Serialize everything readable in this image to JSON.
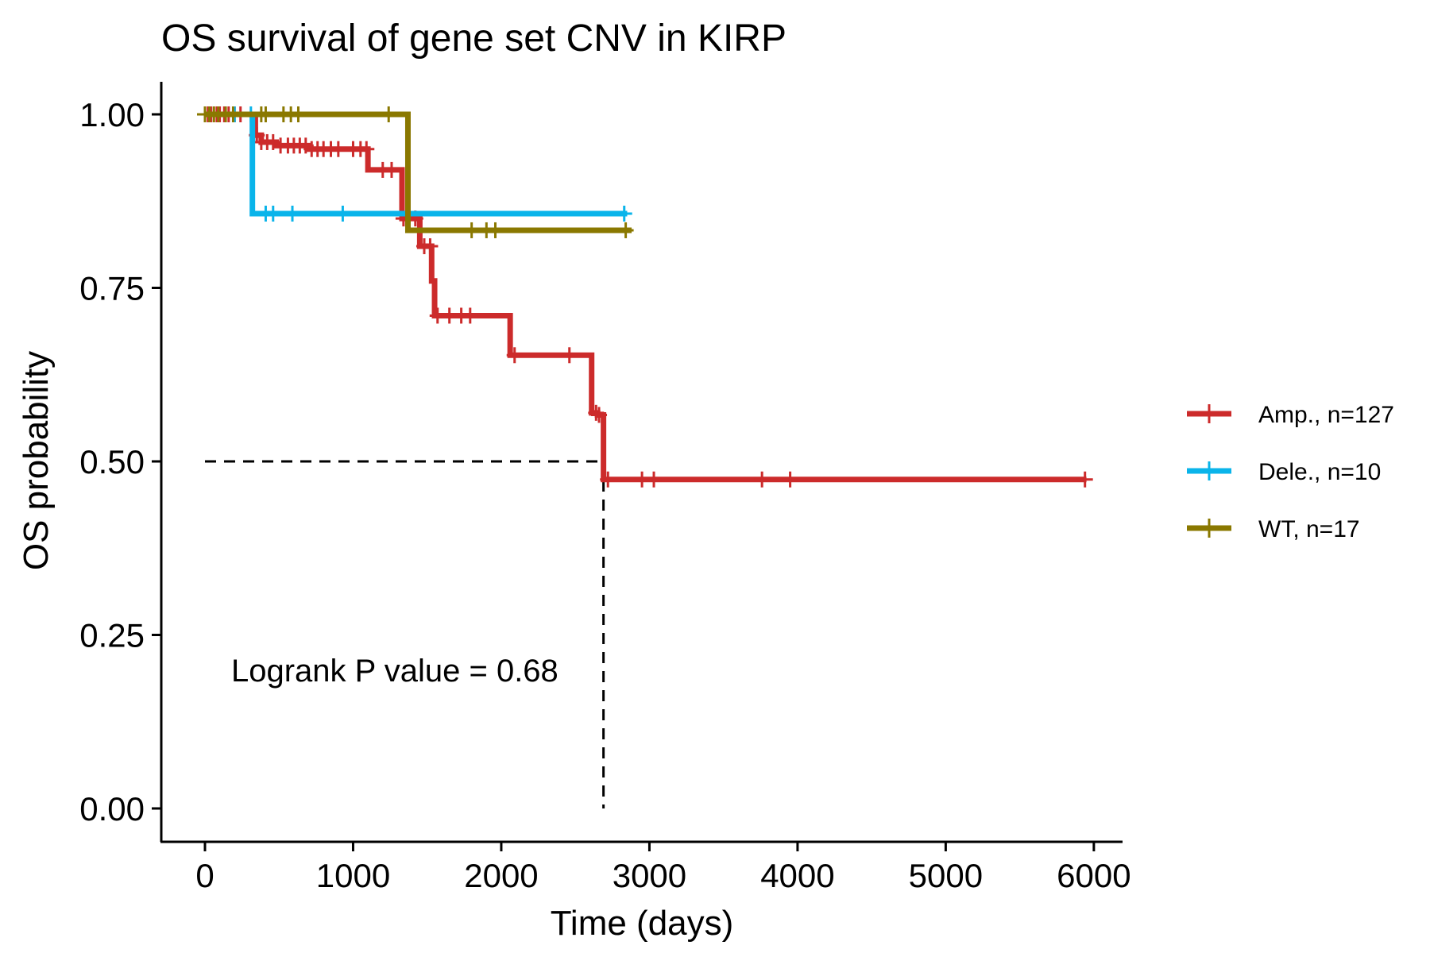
{
  "chart_data": {
    "type": "line",
    "subtype": "kaplan-meier step",
    "title": "OS survival of gene set CNV in KIRP",
    "xlabel": "Time (days)",
    "ylabel": "OS probability",
    "xlim": [
      -300,
      6200
    ],
    "ylim": [
      -0.05,
      1.05
    ],
    "x_ticks": [
      0,
      1000,
      2000,
      3000,
      4000,
      5000,
      6000
    ],
    "x_tick_labels": [
      "0",
      "1000",
      "2000",
      "3000",
      "4000",
      "5000",
      "6000"
    ],
    "y_ticks": [
      0,
      0.25,
      0.5,
      0.75,
      1
    ],
    "y_tick_labels": [
      "0.00",
      "0.25",
      "0.50",
      "0.75",
      "1.00"
    ],
    "grid": false,
    "legend_position": "right",
    "annotation": "Logrank P value = 0.68",
    "median_line": {
      "y": 0.5,
      "x": 2690
    },
    "series": [
      {
        "name": "Amp., n=127",
        "color": "#CC2B2B",
        "x": [
          0,
          340,
          380,
          480,
          700,
          1070,
          1100,
          1300,
          1330,
          1450,
          1530,
          1550,
          1570,
          2060,
          2610,
          2650,
          2690,
          5950
        ],
        "y": [
          1.0,
          0.97,
          0.96,
          0.955,
          0.95,
          0.95,
          0.92,
          0.92,
          0.85,
          0.81,
          0.76,
          0.71,
          0.71,
          0.653,
          0.57,
          0.567,
          0.474,
          0.474
        ],
        "censor_x": [
          20,
          40,
          60,
          80,
          100,
          130,
          160,
          200,
          240,
          350,
          380,
          420,
          460,
          510,
          560,
          600,
          640,
          680,
          720,
          760,
          800,
          850,
          900,
          1000,
          1050,
          1090,
          1200,
          1260,
          1340,
          1370,
          1420,
          1480,
          1520,
          1570,
          1650,
          1730,
          1790,
          2090,
          2460,
          2640,
          2660,
          2720,
          2950,
          3030,
          3760,
          3950,
          5940
        ]
      },
      {
        "name": "Dele., n=10",
        "color": "#0AB4EA",
        "x": [
          0,
          320,
          2850
        ],
        "y": [
          1.0,
          0.857,
          0.857
        ],
        "censor_x": [
          200,
          310,
          410,
          460,
          590,
          930,
          2830
        ]
      },
      {
        "name": "WT, n=17",
        "color": "#8A7800",
        "x": [
          0,
          1370,
          2880
        ],
        "y": [
          1.0,
          0.833,
          0.833
        ],
        "censor_x": [
          0,
          30,
          60,
          90,
          140,
          190,
          380,
          410,
          530,
          580,
          630,
          1240,
          1800,
          1900,
          1960,
          2840
        ]
      }
    ]
  }
}
